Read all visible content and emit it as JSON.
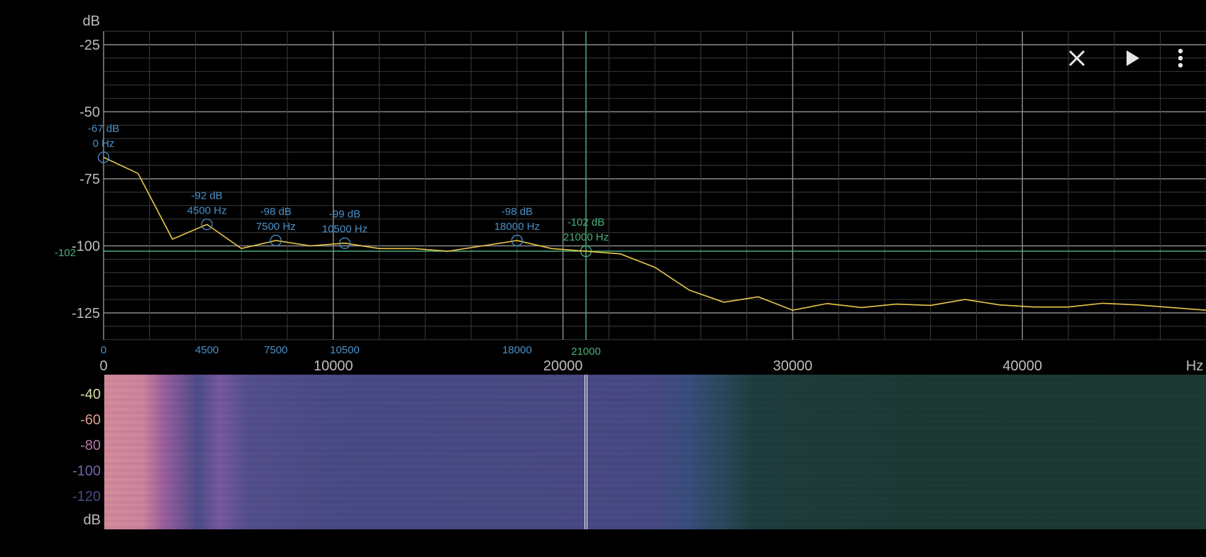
{
  "toolbar": {
    "close_icon": "close-icon",
    "play_icon": "play-icon",
    "menu_icon": "more-vert-icon"
  },
  "chart_data": {
    "type": "line",
    "xlabel": "Hz",
    "ylabel": "dB",
    "xlim": [
      0,
      48000
    ],
    "ylim": [
      -135,
      -20
    ],
    "grid": true,
    "x_ticks": [
      "0",
      "10000",
      "20000",
      "30000",
      "40000"
    ],
    "y_ticks": [
      "-25",
      "-50",
      "-75",
      "-100",
      "-125"
    ],
    "x": [
      0,
      1500,
      3000,
      4500,
      6000,
      7500,
      9000,
      10500,
      12000,
      13500,
      15000,
      16500,
      18000,
      19500,
      21000,
      22500,
      24000,
      25500,
      27000,
      28500,
      30000,
      31500,
      33000,
      34500,
      36000,
      37500,
      39000,
      40500,
      42000,
      43500,
      45000,
      46500,
      48000
    ],
    "y": [
      -67,
      -73,
      -97.5,
      -92,
      -101,
      -98,
      -100,
      -99,
      -101,
      -101,
      -102,
      -100,
      -98,
      -101,
      -102,
      -103,
      -108,
      -116.5,
      -121,
      -119,
      -124,
      -121.5,
      -123,
      -121.7,
      -122.2,
      -120,
      -122,
      -122.8,
      -122.8,
      -121.4,
      -122,
      -123,
      -124
    ],
    "line_color": "#e8c84a",
    "peaks": [
      {
        "db": "-67 dB",
        "hz": "0 Hz",
        "freq": 0,
        "level": -67,
        "axis_label": "0"
      },
      {
        "db": "-92 dB",
        "hz": "4500 Hz",
        "freq": 4500,
        "level": -92,
        "axis_label": "4500"
      },
      {
        "db": "-98 dB",
        "hz": "7500 Hz",
        "freq": 7500,
        "level": -98,
        "axis_label": "7500"
      },
      {
        "db": "-99 dB",
        "hz": "10500 Hz",
        "freq": 10500,
        "level": -99,
        "axis_label": "10500"
      },
      {
        "db": "-98 dB",
        "hz": "18000 Hz",
        "freq": 18000,
        "level": -98,
        "axis_label": "18000"
      }
    ],
    "peak_color": "#4a90c8",
    "cursor": {
      "db": "-102 dB",
      "hz": "21000 Hz",
      "freq": 21000,
      "level": -102,
      "x_label": "21000",
      "y_label": "-102",
      "color": "#4cae7a"
    }
  },
  "spectrogram": {
    "scale": [
      {
        "label": "-40",
        "color": "#d9dca6"
      },
      {
        "label": "-60",
        "color": "#d8a08c"
      },
      {
        "label": "-80",
        "color": "#b57aa8"
      },
      {
        "label": "-100",
        "color": "#6f65a8"
      },
      {
        "label": "-120",
        "color": "#4a4a86"
      }
    ],
    "unit": "dB"
  }
}
